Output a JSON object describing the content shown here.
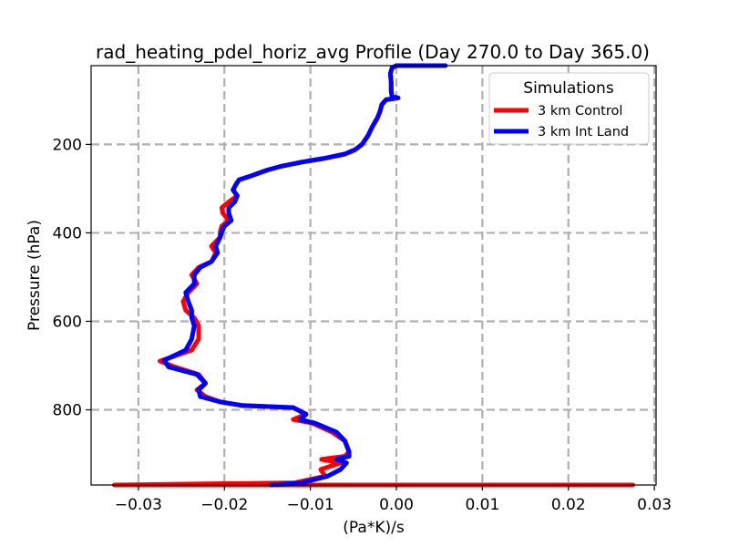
{
  "chart_data": {
    "type": "line",
    "title": "rad_heating_pdel_horiz_avg Profile (Day 270.0 to Day 365.0)",
    "xlabel": "(Pa*K)/s",
    "ylabel": "Pressure (hPa)",
    "xlim": [
      -0.0355,
      0.0302
    ],
    "ylim": [
      970,
      22
    ],
    "y_inverted": true,
    "grid": true,
    "x_ticks": [
      -0.03,
      -0.02,
      -0.01,
      0.0,
      0.01,
      0.02,
      0.03
    ],
    "x_tick_labels": [
      "−0.03",
      "−0.02",
      "−0.01",
      "0.00",
      "0.01",
      "0.02",
      "0.03"
    ],
    "y_ticks": [
      200,
      400,
      600,
      800
    ],
    "y_tick_labels": [
      "200",
      "400",
      "600",
      "800"
    ],
    "legend": {
      "title": "Simulations",
      "position": "upper right",
      "entries": [
        "3 km Control",
        "3 km Int Land"
      ]
    },
    "series": [
      {
        "name": "3 km Control",
        "color": "#ff0000",
        "points": [
          [
            0.0057,
            22
          ],
          [
            0.0,
            22
          ],
          [
            -0.0005,
            27
          ],
          [
            -0.0007,
            40
          ],
          [
            -0.0006,
            60
          ],
          [
            -0.0006,
            80
          ],
          [
            -0.0005,
            92
          ],
          [
            0.0002,
            95
          ],
          [
            -0.0005,
            97
          ],
          [
            -0.0012,
            99
          ],
          [
            -0.0017,
            110
          ],
          [
            -0.0019,
            125
          ],
          [
            -0.0022,
            140
          ],
          [
            -0.0028,
            160
          ],
          [
            -0.0033,
            180
          ],
          [
            -0.004,
            200
          ],
          [
            -0.0048,
            212
          ],
          [
            -0.006,
            222
          ],
          [
            -0.0085,
            232
          ],
          [
            -0.011,
            240
          ],
          [
            -0.0135,
            250
          ],
          [
            -0.015,
            258
          ],
          [
            -0.016,
            265
          ],
          [
            -0.017,
            272
          ],
          [
            -0.0183,
            280
          ],
          [
            -0.0187,
            292
          ],
          [
            -0.019,
            303
          ],
          [
            -0.0185,
            316
          ],
          [
            -0.0195,
            330
          ],
          [
            -0.0203,
            343
          ],
          [
            -0.0202,
            355
          ],
          [
            -0.0195,
            372
          ],
          [
            -0.0203,
            385
          ],
          [
            -0.0205,
            398
          ],
          [
            -0.0205,
            410
          ],
          [
            -0.0215,
            430
          ],
          [
            -0.021,
            445
          ],
          [
            -0.0215,
            465
          ],
          [
            -0.023,
            478
          ],
          [
            -0.0238,
            495
          ],
          [
            -0.0232,
            515
          ],
          [
            -0.0242,
            535
          ],
          [
            -0.0248,
            555
          ],
          [
            -0.0245,
            575
          ],
          [
            -0.0235,
            592
          ],
          [
            -0.023,
            610
          ],
          [
            -0.023,
            640
          ],
          [
            -0.0238,
            665
          ],
          [
            -0.0275,
            690
          ],
          [
            -0.0258,
            703
          ],
          [
            -0.023,
            720
          ],
          [
            -0.0222,
            740
          ],
          [
            -0.0232,
            755
          ],
          [
            -0.0222,
            770
          ],
          [
            -0.0205,
            782
          ],
          [
            -0.018,
            790
          ],
          [
            -0.012,
            795
          ],
          [
            -0.0105,
            810
          ],
          [
            -0.012,
            822
          ],
          [
            -0.0098,
            830
          ],
          [
            -0.0075,
            850
          ],
          [
            -0.006,
            870
          ],
          [
            -0.0055,
            895
          ],
          [
            -0.006,
            905
          ],
          [
            -0.0087,
            912
          ],
          [
            -0.0065,
            920
          ],
          [
            -0.0088,
            935
          ],
          [
            -0.0083,
            950
          ],
          [
            -0.0118,
            965
          ],
          [
            -0.0328,
            970
          ],
          [
            0.0275,
            970
          ]
        ]
      },
      {
        "name": "3 km Int Land",
        "color": "#0000ff",
        "points": [
          [
            0.0057,
            22
          ],
          [
            0.0,
            22
          ],
          [
            -0.0005,
            27
          ],
          [
            -0.0007,
            40
          ],
          [
            -0.0006,
            60
          ],
          [
            -0.0006,
            80
          ],
          [
            -0.0005,
            92
          ],
          [
            0.0002,
            95
          ],
          [
            -0.0005,
            97
          ],
          [
            -0.0012,
            99
          ],
          [
            -0.0017,
            110
          ],
          [
            -0.0019,
            125
          ],
          [
            -0.0022,
            140
          ],
          [
            -0.0028,
            160
          ],
          [
            -0.0033,
            180
          ],
          [
            -0.004,
            200
          ],
          [
            -0.0048,
            212
          ],
          [
            -0.006,
            222
          ],
          [
            -0.0085,
            232
          ],
          [
            -0.011,
            240
          ],
          [
            -0.0135,
            250
          ],
          [
            -0.015,
            258
          ],
          [
            -0.016,
            265
          ],
          [
            -0.017,
            272
          ],
          [
            -0.0183,
            280
          ],
          [
            -0.0187,
            292
          ],
          [
            -0.019,
            303
          ],
          [
            -0.0185,
            316
          ],
          [
            -0.0188,
            330
          ],
          [
            -0.0195,
            343
          ],
          [
            -0.0195,
            355
          ],
          [
            -0.0192,
            372
          ],
          [
            -0.02,
            385
          ],
          [
            -0.0203,
            398
          ],
          [
            -0.0205,
            410
          ],
          [
            -0.021,
            430
          ],
          [
            -0.0208,
            445
          ],
          [
            -0.0215,
            465
          ],
          [
            -0.0228,
            478
          ],
          [
            -0.0235,
            495
          ],
          [
            -0.0235,
            515
          ],
          [
            -0.0245,
            535
          ],
          [
            -0.0242,
            555
          ],
          [
            -0.0238,
            575
          ],
          [
            -0.0238,
            592
          ],
          [
            -0.0235,
            610
          ],
          [
            -0.0238,
            640
          ],
          [
            -0.0245,
            665
          ],
          [
            -0.027,
            688
          ],
          [
            -0.0265,
            703
          ],
          [
            -0.0232,
            720
          ],
          [
            -0.0222,
            740
          ],
          [
            -0.023,
            755
          ],
          [
            -0.0228,
            770
          ],
          [
            -0.0205,
            782
          ],
          [
            -0.018,
            790
          ],
          [
            -0.012,
            795
          ],
          [
            -0.0105,
            810
          ],
          [
            -0.0112,
            822
          ],
          [
            -0.0095,
            830
          ],
          [
            -0.007,
            850
          ],
          [
            -0.006,
            870
          ],
          [
            -0.0055,
            895
          ],
          [
            -0.0055,
            905
          ],
          [
            -0.007,
            912
          ],
          [
            -0.0058,
            920
          ],
          [
            -0.0065,
            935
          ],
          [
            -0.008,
            950
          ],
          [
            -0.011,
            965
          ],
          [
            -0.0145,
            970
          ]
        ]
      }
    ]
  }
}
